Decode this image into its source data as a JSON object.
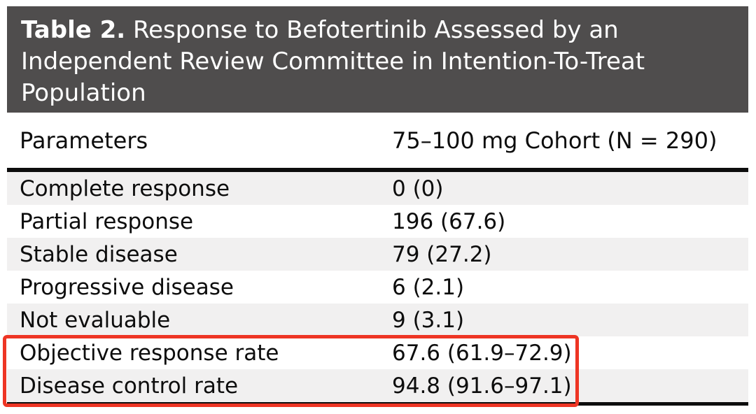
{
  "title": {
    "label": "Table 2.",
    "line1_rest": "Response to Befotertinib Assessed by an",
    "line2": "Independent Review Committee in Intention-To-Treat",
    "line3": "Population"
  },
  "columns": {
    "parameter": "Parameters",
    "value": "75–100 mg Cohort (N = 290)"
  },
  "rows": [
    {
      "parameter": "Complete response",
      "value": "0 (0)"
    },
    {
      "parameter": "Partial response",
      "value": "196 (67.6)"
    },
    {
      "parameter": "Stable disease",
      "value": "79 (27.2)"
    },
    {
      "parameter": "Progressive disease",
      "value": "6 (2.1)"
    },
    {
      "parameter": "Not evaluable",
      "value": "9 (3.1)"
    },
    {
      "parameter": "Objective response rate",
      "value": "67.6 (61.9–72.9)"
    },
    {
      "parameter": "Disease control rate",
      "value": "94.8 (91.6–97.1)"
    }
  ],
  "highlight": {
    "color": "#ee3524",
    "highlighted_rows": [
      "Objective response rate",
      "Disease control rate"
    ]
  },
  "colors": {
    "title_bg": "#4f4d4d",
    "title_text": "#ffffff",
    "stripe_bg": "#f1f0f0",
    "rule": "#0d0d0d"
  },
  "chart_data": {
    "type": "table",
    "title": "Table 2. Response to Befotertinib Assessed by an Independent Review Committee in Intention-To-Treat Population",
    "columns": [
      "Parameters",
      "75–100 mg Cohort (N = 290)"
    ],
    "rows": [
      [
        "Complete response",
        "0 (0)"
      ],
      [
        "Partial response",
        "196 (67.6)"
      ],
      [
        "Stable disease",
        "79 (27.2)"
      ],
      [
        "Progressive disease",
        "6 (2.1)"
      ],
      [
        "Not evaluable",
        "9 (3.1)"
      ],
      [
        "Objective response rate",
        "67.6 (61.9–72.9)"
      ],
      [
        "Disease control rate",
        "94.8 (91.6–97.1)"
      ]
    ]
  }
}
